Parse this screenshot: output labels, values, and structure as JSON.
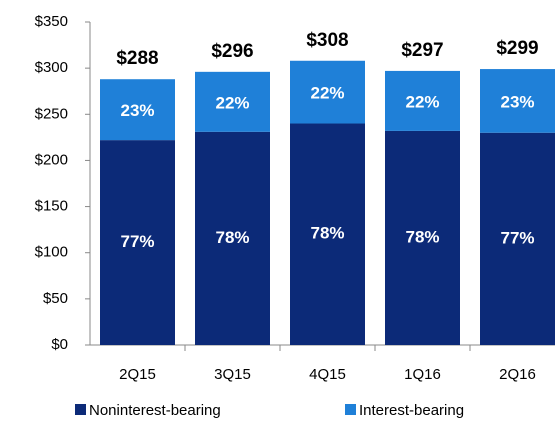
{
  "chart_data": {
    "type": "stacked_bar",
    "categories": [
      "2Q15",
      "3Q15",
      "4Q15",
      "1Q16",
      "2Q16"
    ],
    "series": [
      {
        "name": "Noninterest-bearing",
        "color": "#0c2a78",
        "values": [
          222,
          231,
          240,
          232,
          230
        ],
        "percent_labels": [
          "77%",
          "78%",
          "78%",
          "78%",
          "77%"
        ]
      },
      {
        "name": "Interest-bearing",
        "color": "#1f80d8",
        "values": [
          66,
          65,
          68,
          65,
          69
        ],
        "percent_labels": [
          "23%",
          "22%",
          "22%",
          "22%",
          "23%"
        ]
      }
    ],
    "total_labels": [
      "$288",
      "$296",
      "$308",
      "$297",
      "$299"
    ],
    "ylim": [
      0,
      350
    ],
    "yticks": [
      {
        "value": 0,
        "label": "$0"
      },
      {
        "value": 50,
        "label": "$50"
      },
      {
        "value": 100,
        "label": "$100"
      },
      {
        "value": 150,
        "label": "$150"
      },
      {
        "value": 200,
        "label": "$200"
      },
      {
        "value": 250,
        "label": "$250"
      },
      {
        "value": 300,
        "label": "$300"
      },
      {
        "value": 350,
        "label": "$350"
      }
    ],
    "legend": "bottom"
  }
}
